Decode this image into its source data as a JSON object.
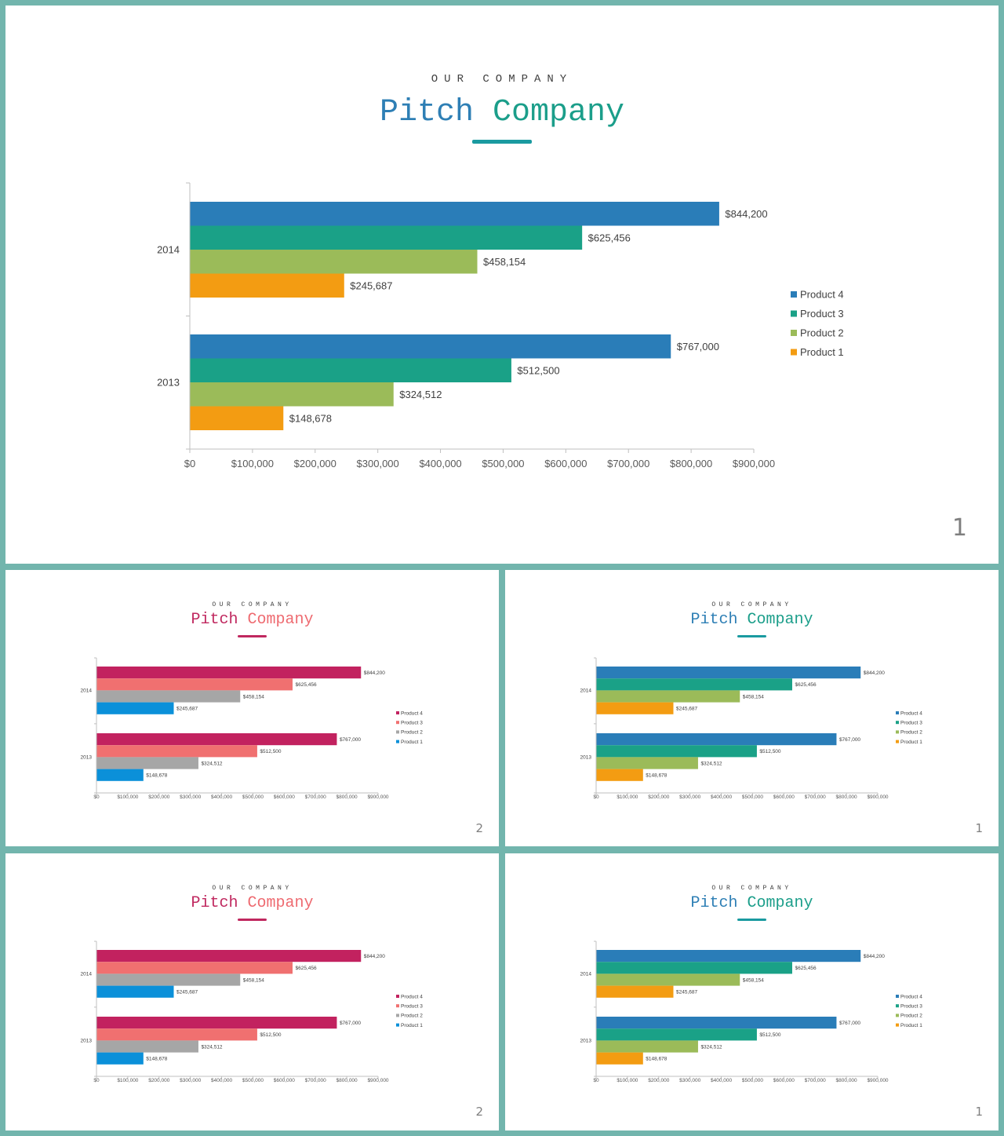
{
  "slides": [
    {
      "kicker": "OUR COMPANY",
      "title": "Pitch Company",
      "page": "1",
      "theme": "teal"
    },
    {
      "kicker": "OUR COMPANY",
      "title": "Pitch Company",
      "page": "2",
      "theme": "magenta"
    },
    {
      "kicker": "OUR COMPANY",
      "title": "Pitch Company",
      "page": "1",
      "theme": "teal"
    },
    {
      "kicker": "OUR COMPANY",
      "title": "Pitch Company",
      "page": "2",
      "theme": "magenta"
    },
    {
      "kicker": "OUR COMPANY",
      "title": "Pitch Company",
      "page": "1",
      "theme": "teal"
    }
  ],
  "themes": {
    "teal": {
      "title_colors": [
        "#2e7fb5",
        "#1b9e8a"
      ],
      "underline": "#1a9aa0",
      "series_colors": {
        "Product 4": "#2a7db8",
        "Product 3": "#1aa187",
        "Product 2": "#9bbb59",
        "Product 1": "#f39c12"
      }
    },
    "magenta": {
      "title_colors": [
        "#c0285f",
        "#ee6a70"
      ],
      "underline": "#c0285f",
      "series_colors": {
        "Product 4": "#c2225f",
        "Product 3": "#f07070",
        "Product 2": "#a6a6a6",
        "Product 1": "#0b90d9"
      }
    }
  },
  "chart_data": {
    "type": "bar",
    "orientation": "horizontal",
    "categories": [
      "2014",
      "2013"
    ],
    "series": [
      {
        "name": "Product 4",
        "values": [
          844200,
          767000
        ],
        "labels": [
          "$844,200",
          "$767,000"
        ]
      },
      {
        "name": "Product 3",
        "values": [
          625456,
          512500
        ],
        "labels": [
          "$625,456",
          "$512,500"
        ]
      },
      {
        "name": "Product 2",
        "values": [
          458154,
          324512
        ],
        "labels": [
          "$458,154",
          "$324,512"
        ]
      },
      {
        "name": "Product 1",
        "values": [
          245687,
          148678
        ],
        "labels": [
          "$245,687",
          "$148,678"
        ]
      }
    ],
    "xlim": [
      0,
      900000
    ],
    "xticks": [
      "$0",
      "$100,000",
      "$200,000",
      "$300,000",
      "$400,000",
      "$500,000",
      "$600,000",
      "$700,000",
      "$800,000",
      "$900,000"
    ],
    "legend": [
      "Product 4",
      "Product 3",
      "Product 2",
      "Product 1"
    ],
    "legend_placement": "right",
    "grid": false
  }
}
